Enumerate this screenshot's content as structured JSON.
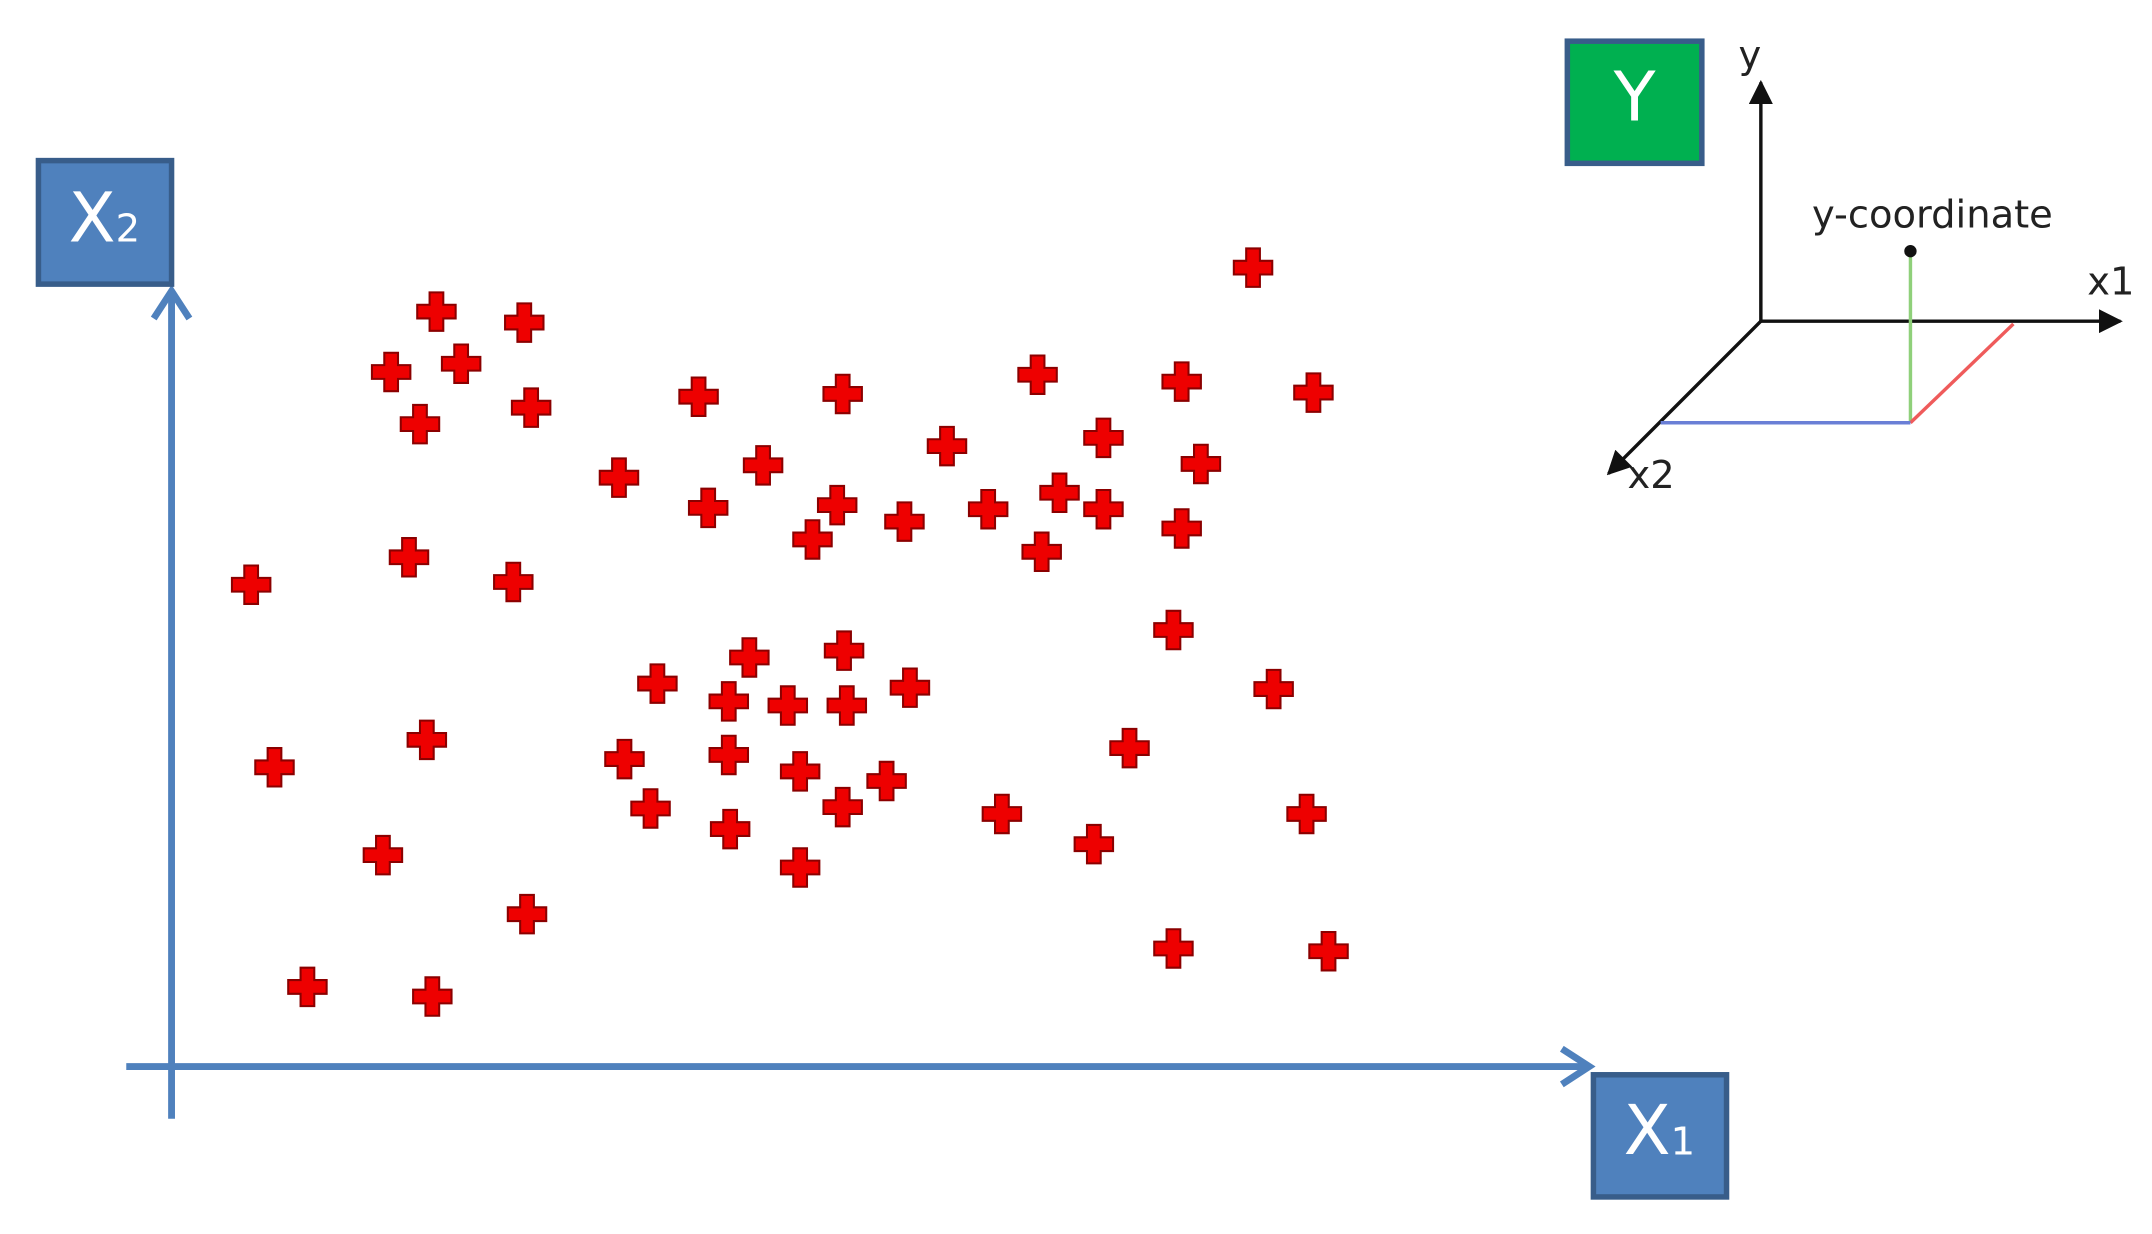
{
  "x2_box": {
    "main": "X",
    "sub": "2"
  },
  "x1_box": {
    "main": "X",
    "sub": "1"
  },
  "y_box": "Y",
  "inset": {
    "y_axis": "y",
    "point_label": "y-coordinate",
    "x1_axis": "x1",
    "x2_axis": "x2"
  }
}
